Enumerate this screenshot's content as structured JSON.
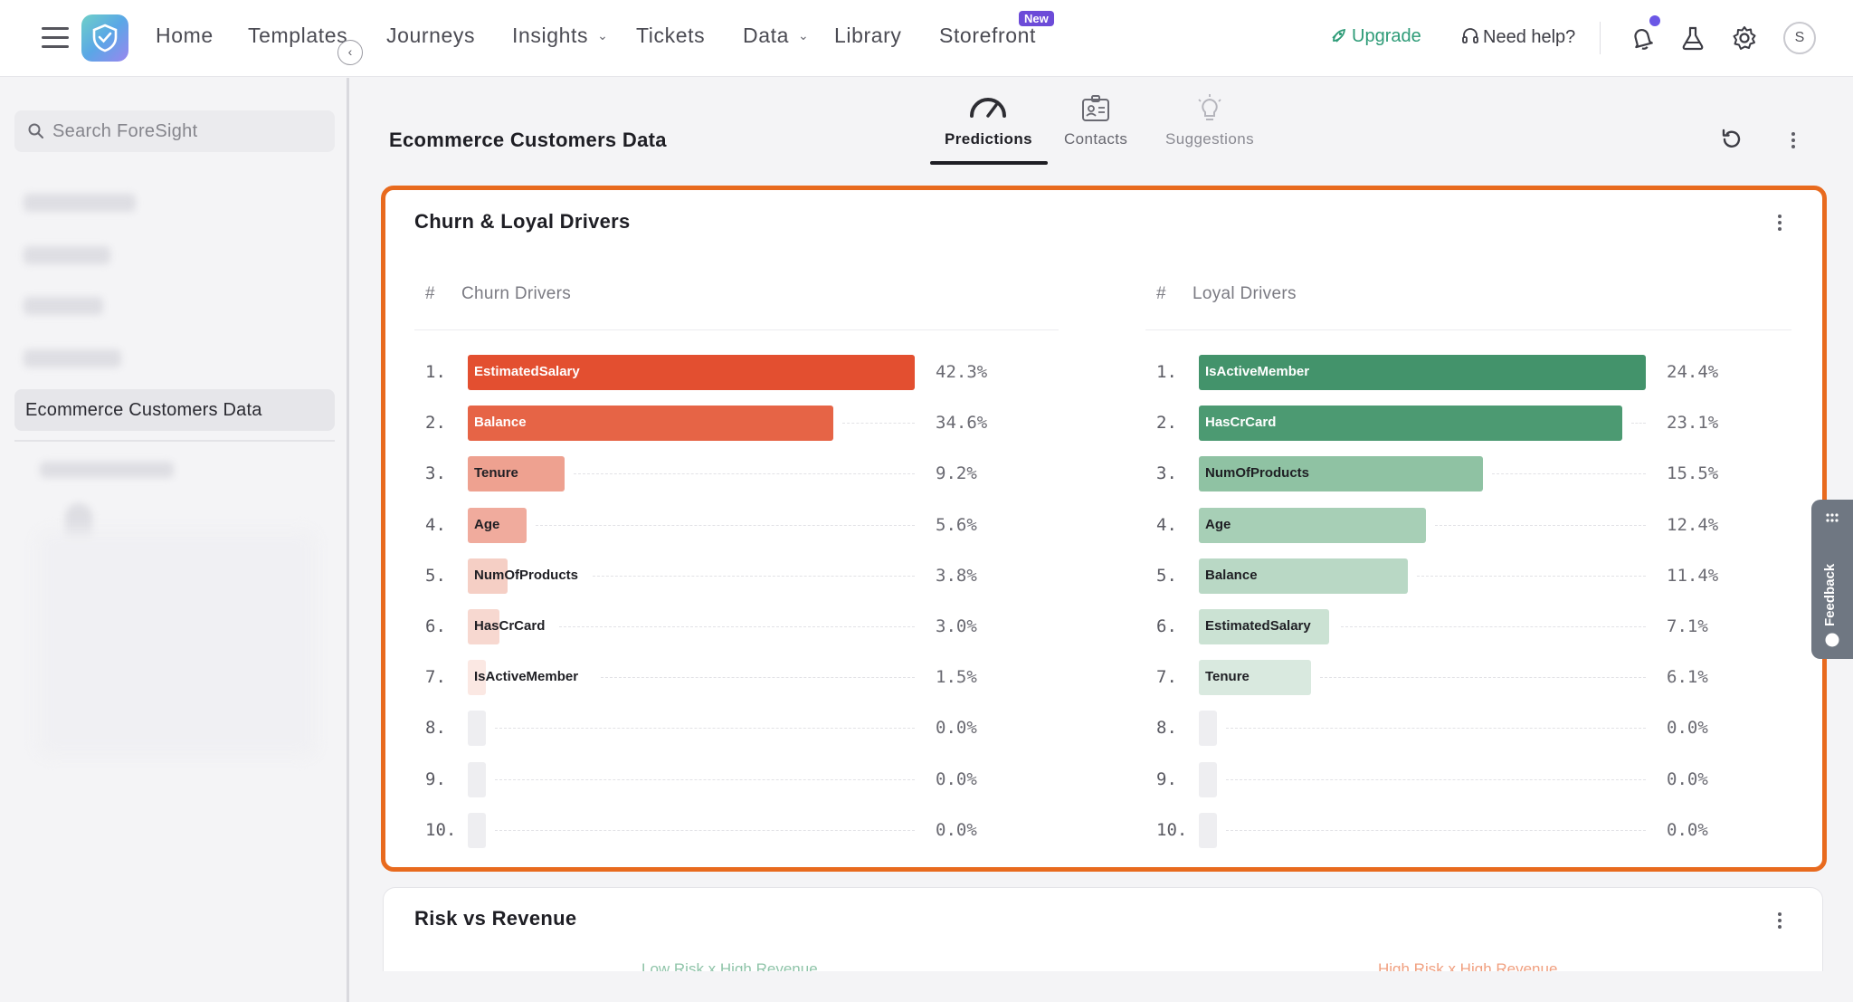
{
  "nav": {
    "items": [
      {
        "label": "Home"
      },
      {
        "label": "Templates"
      },
      {
        "label": "Journeys"
      },
      {
        "label": "Insights"
      },
      {
        "label": "Tickets"
      },
      {
        "label": "Data"
      },
      {
        "label": "Library"
      },
      {
        "label": "Storefront"
      }
    ],
    "new_badge": "New",
    "upgrade": "Upgrade",
    "help": "Need help?",
    "avatar": "S"
  },
  "sidebar": {
    "search_placeholder": "Search ForeSight",
    "active_item": "Ecommerce Customers Data"
  },
  "header": {
    "title": "Ecommerce Customers Data",
    "tabs": [
      {
        "label": "Predictions",
        "active": true
      },
      {
        "label": "Contacts"
      },
      {
        "label": "Suggestions"
      }
    ]
  },
  "card": {
    "title": "Churn & Loyal Drivers",
    "churn_header": {
      "hash": "#",
      "label": "Churn Drivers"
    },
    "loyal_header": {
      "hash": "#",
      "label": "Loyal Drivers"
    }
  },
  "chart_data": [
    {
      "type": "bar",
      "orientation": "horizontal",
      "title": "Churn Drivers",
      "ranks": [
        "1.",
        "2.",
        "3.",
        "4.",
        "5.",
        "6.",
        "7.",
        "8.",
        "9.",
        "10."
      ],
      "categories": [
        "EstimatedSalary",
        "Balance",
        "Tenure",
        "Age",
        "NumOfProducts",
        "HasCrCard",
        "IsActiveMember",
        "",
        "",
        ""
      ],
      "values": [
        42.3,
        34.6,
        9.2,
        5.6,
        3.8,
        3.0,
        1.5,
        0.0,
        0.0,
        0.0
      ],
      "value_labels": [
        "42.3%",
        "34.6%",
        "9.2%",
        "5.6%",
        "3.8%",
        "3.0%",
        "1.5%",
        "0.0%",
        "0.0%",
        "0.0%"
      ],
      "colors": [
        "#e34f30",
        "#e66446",
        "#eea190",
        "#f0ab9d",
        "#f5cfc5",
        "#f7d8d0",
        "#fbe8e3",
        "#eeeef1",
        "#eeeef1",
        "#eeeef1"
      ],
      "label_colors": [
        "#ffffff",
        "#ffffff",
        "#1f1f24",
        "#1f1f24",
        "#1f1f24",
        "#1f1f24",
        "#1f1f24",
        "#1f1f24",
        "#1f1f24",
        "#1f1f24"
      ],
      "xlim": [
        0,
        42.3
      ]
    },
    {
      "type": "bar",
      "orientation": "horizontal",
      "title": "Loyal Drivers",
      "ranks": [
        "1.",
        "2.",
        "3.",
        "4.",
        "5.",
        "6.",
        "7.",
        "8.",
        "9.",
        "10."
      ],
      "categories": [
        "IsActiveMember",
        "HasCrCard",
        "NumOfProducts",
        "Age",
        "Balance",
        "EstimatedSalary",
        "Tenure",
        "",
        "",
        ""
      ],
      "values": [
        24.4,
        23.1,
        15.5,
        12.4,
        11.4,
        7.1,
        6.1,
        0.0,
        0.0,
        0.0
      ],
      "value_labels": [
        "24.4%",
        "23.1%",
        "15.5%",
        "12.4%",
        "11.4%",
        "7.1%",
        "6.1%",
        "0.0%",
        "0.0%",
        "0.0%"
      ],
      "colors": [
        "#43936b",
        "#4c9a72",
        "#8fc2a3",
        "#a7cfb6",
        "#b9d8c5",
        "#cbe2d3",
        "#d9e9df",
        "#eeeef1",
        "#eeeef1",
        "#eeeef1"
      ],
      "label_colors": [
        "#ffffff",
        "#ffffff",
        "#1f1f24",
        "#1f1f24",
        "#1f1f24",
        "#1f1f24",
        "#1f1f24",
        "#1f1f24",
        "#1f1f24",
        "#1f1f24"
      ],
      "xlim": [
        0,
        24.4
      ]
    }
  ],
  "card2": {
    "title": "Risk vs Revenue",
    "peek_left": "Low Risk x High Revenue",
    "peek_right": "High Risk x High Revenue"
  },
  "feedback": {
    "label": "Feedback"
  }
}
